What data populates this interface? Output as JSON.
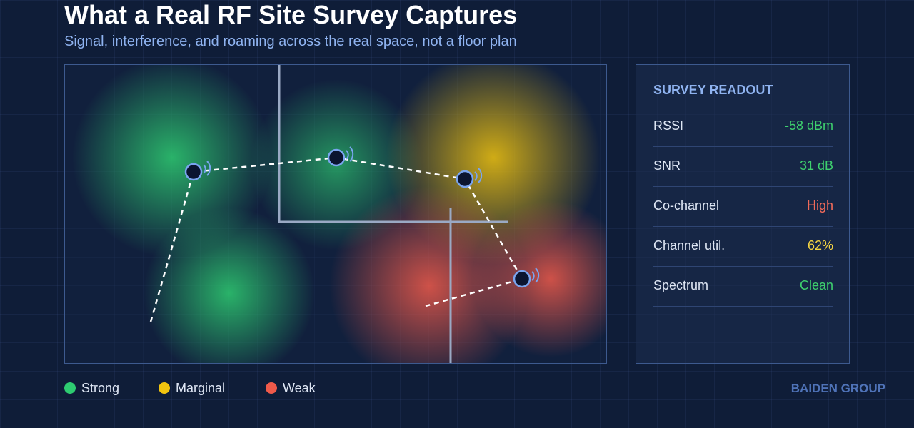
{
  "header": {
    "title": "What a Real RF Site Survey Captures",
    "subtitle": "Signal, interference, and roaming across the real space, not a floor plan"
  },
  "readout": {
    "title": "SURVEY READOUT",
    "rows": [
      [
        "RSSI",
        "-58 dBm"
      ],
      [
        "SNR",
        "31 dB"
      ],
      [
        "Co-channel",
        "High"
      ],
      [
        "Channel util.",
        "62%"
      ],
      [
        "Spectrum",
        "Clean"
      ]
    ]
  },
  "legend": [
    "Strong",
    "Marginal",
    "Weak"
  ],
  "brand": "BAIDEN GROUP"
}
